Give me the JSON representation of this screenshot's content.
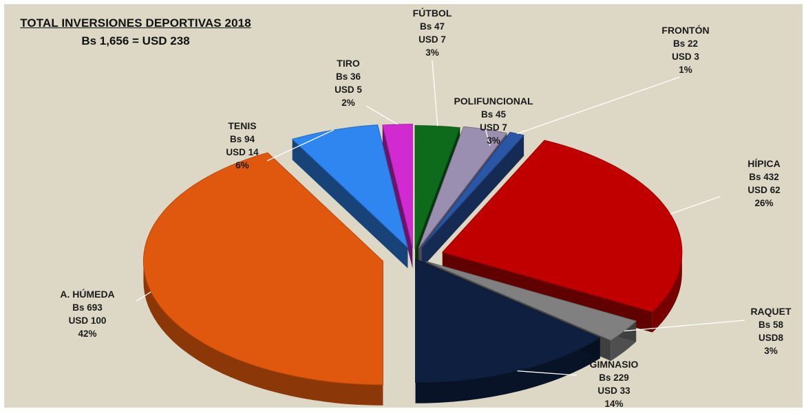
{
  "title": "TOTAL INVERSIONES DEPORTIVAS 2018",
  "subtitle": "Bs 1,656   =   USD 238",
  "colors": {
    "background": "#ddd8c6",
    "futbol": "#0e6b1c",
    "polifuncional": "#9a8fb0",
    "fronton": "#2a56a6",
    "hipica": "#c00000",
    "raquet": "#808080",
    "gimnasio": "#0e1f3f",
    "a_humeda": "#e0580d",
    "tenis": "#2f86f0",
    "tiro": "#d12ad1"
  },
  "chart_data": {
    "type": "pie",
    "title": "TOTAL INVERSIONES DEPORTIVAS 2018",
    "subtitle": "Bs 1,656   =   USD 238",
    "legend": "none",
    "slices": [
      {
        "key": "futbol",
        "name": "FÚTBOL",
        "bs": "Bs 47",
        "usd": "USD 7",
        "pct": "3%",
        "value": 3,
        "color": "#0e6b1c"
      },
      {
        "key": "polifuncional",
        "name": "POLIFUNCIONAL",
        "bs": "Bs 45",
        "usd": "USD 7",
        "pct": "3%",
        "value": 3,
        "color": "#9a8fb0"
      },
      {
        "key": "fronton",
        "name": "FRONTÓN",
        "bs": "Bs 22",
        "usd": "USD 3",
        "pct": "1%",
        "value": 1,
        "color": "#2a56a6"
      },
      {
        "key": "hipica",
        "name": "HÍPICA",
        "bs": "Bs 432",
        "usd": "USD 62",
        "pct": "26%",
        "value": 26,
        "color": "#c00000"
      },
      {
        "key": "raquet",
        "name": "RAQUET",
        "bs": "Bs 58",
        "usd": "USD8",
        "pct": "3%",
        "value": 3,
        "color": "#808080"
      },
      {
        "key": "gimnasio",
        "name": "GIMNASIO",
        "bs": "Bs 229",
        "usd": "USD 33",
        "pct": "14%",
        "value": 14,
        "color": "#0e1f3f"
      },
      {
        "key": "a_humeda",
        "name": "A. HÚMEDA",
        "bs": "Bs 693",
        "usd": "USD 100",
        "pct": "42%",
        "value": 42,
        "color": "#e0580d"
      },
      {
        "key": "tenis",
        "name": "TENIS",
        "bs": "Bs 94",
        "usd": "USD 14",
        "pct": "6%",
        "value": 6,
        "color": "#2f86f0"
      },
      {
        "key": "tiro",
        "name": "TIRO",
        "bs": "Bs 36",
        "usd": "USD 5",
        "pct": "2%",
        "value": 2,
        "color": "#d12ad1"
      }
    ]
  }
}
